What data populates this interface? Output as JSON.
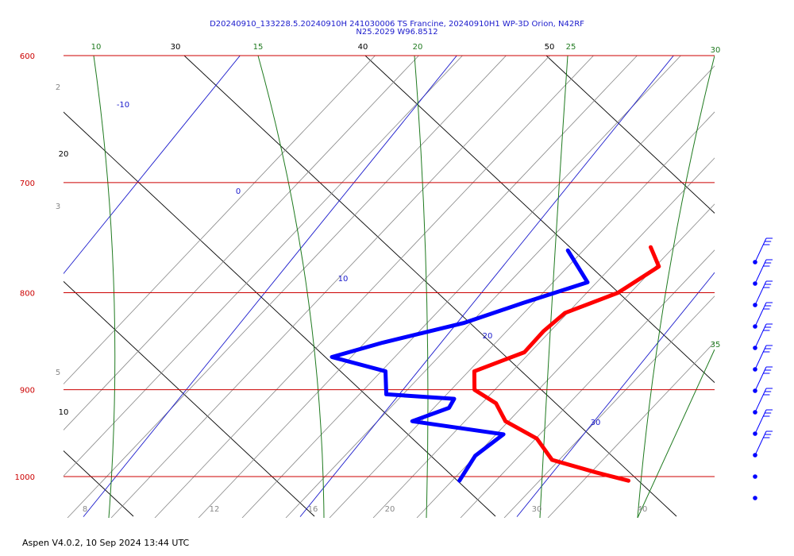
{
  "chart_data": {
    "type": "skew-t",
    "title_line1": "D20240910_133228.5.20240910H 241030006 TS Francine, 20240910H1 WP-3D Orion, N42RF",
    "title_line2": "N25.2029 W96.8512",
    "pressure_levels": [
      600,
      700,
      800,
      900,
      1000
    ],
    "isotherm_labels": [
      -10,
      0,
      10,
      20,
      30
    ],
    "dry_adiabat_labels": [
      10,
      20,
      30,
      40,
      50
    ],
    "moist_adiabat_labels": [
      10,
      15,
      20,
      25,
      30,
      35
    ],
    "mixing_ratio_labels": [
      2,
      3,
      5,
      8,
      12,
      16,
      20,
      30,
      40
    ],
    "temperature_color": "#ff0000",
    "dewpoint_color": "#0000ff",
    "isobar_color": "#cc0000",
    "isotherm_color": "#1a1acc",
    "dry_adiabat_color": "#000000",
    "moist_adiabat_color": "#1f7a1f",
    "mixing_ratio_color": "#888888",
    "temperature": [
      {
        "p": 757,
        "t": 16.1
      },
      {
        "p": 775,
        "t": 17.2
      },
      {
        "p": 800,
        "t": 16.3
      },
      {
        "p": 820,
        "t": 14.6
      },
      {
        "p": 838,
        "t": 14.3
      },
      {
        "p": 860,
        "t": 14.2
      },
      {
        "p": 880,
        "t": 12.6
      },
      {
        "p": 900,
        "t": 13.3
      },
      {
        "p": 915,
        "t": 14.8
      },
      {
        "p": 935,
        "t": 15.9
      },
      {
        "p": 955,
        "t": 18.0
      },
      {
        "p": 980,
        "t": 19.5
      },
      {
        "p": 995,
        "t": 22.0
      },
      {
        "p": 1005,
        "t": 23.8
      }
    ],
    "dewpoint": [
      {
        "p": 760,
        "td": 12.4
      },
      {
        "p": 790,
        "td": 14.5
      },
      {
        "p": 810,
        "td": 12.3
      },
      {
        "p": 830,
        "td": 10.3
      },
      {
        "p": 850,
        "td": 7.3
      },
      {
        "p": 865,
        "td": 5.5
      },
      {
        "p": 880,
        "td": 8.5
      },
      {
        "p": 905,
        "td": 9.4
      },
      {
        "p": 910,
        "td": 12.7
      },
      {
        "p": 920,
        "td": 12.8
      },
      {
        "p": 935,
        "td": 11.6
      },
      {
        "p": 950,
        "td": 16.3
      },
      {
        "p": 975,
        "td": 15.8
      },
      {
        "p": 1005,
        "td": 16.0
      }
    ],
    "wind_barb_levels": 12
  },
  "footer": "Aspen V4.0.2, 10 Sep 2024  13:44 UTC"
}
